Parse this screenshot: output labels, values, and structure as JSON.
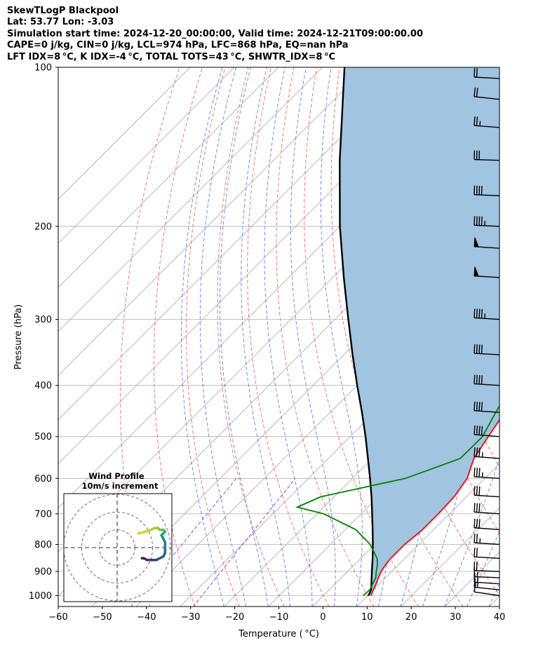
{
  "header": {
    "line1": "SkewTLogP Blackpool",
    "line2": "Lat: 53.77   Lon: -3.03",
    "line3": "Simulation start time: 2024-12-20_00:00:00, Valid time: 2024-12-21T09:00:00.00",
    "line4": "CAPE=0 j/kg, CIN=0 j/kg, LCL=974 hPa, LFC=868 hPa, EQ=nan hPa",
    "line5": "LFT IDX=8 °C, K IDX=-4 °C, TOTAL TOTS=43 °C, SHWTR_IDX=8 °C"
  },
  "chart_data": {
    "type": "line",
    "subtype": "skew-t log-p",
    "xlabel": "Temperature ( °C)",
    "ylabel": "Pressure (hPa)",
    "xlim": [
      -60,
      40
    ],
    "ylim": [
      1050,
      100
    ],
    "x_ticks": [
      -60,
      -50,
      -40,
      -30,
      -20,
      -10,
      0,
      10,
      20,
      30,
      40
    ],
    "x_tick_labels": [
      "−60",
      "−50",
      "−40",
      "−30",
      "−20",
      "−10",
      "0",
      "10",
      "20",
      "30",
      "40"
    ],
    "y_ticks": [
      1000,
      900,
      800,
      700,
      600,
      500,
      400,
      300,
      200,
      100
    ],
    "y_tick_labels": [
      "1000",
      "900",
      "800",
      "700",
      "600",
      "500",
      "400",
      "300",
      "200",
      "100"
    ],
    "y_scale": "log",
    "grid": true,
    "colors": {
      "temperature": "#ff0000",
      "dewpoint": "#008000",
      "parcel": "#000000",
      "cape_fill": "#a1c4e0",
      "dry_adiabats": "#ff4444",
      "moist_adiabats": "#3355ff",
      "isotherms": "#999999",
      "mixing_ratio": "#9933cc"
    },
    "series": [
      {
        "key": "temperature",
        "points": [
          [
            1000,
            10.8
          ],
          [
            975,
            10.0
          ],
          [
            950,
            9.3
          ],
          [
            925,
            8.4
          ],
          [
            900,
            7.6
          ],
          [
            875,
            7.1
          ],
          [
            850,
            6.8
          ],
          [
            800,
            6.8
          ],
          [
            750,
            7.5
          ],
          [
            700,
            7.5
          ],
          [
            650,
            7.2
          ],
          [
            600,
            6.0
          ],
          [
            550,
            3.0
          ],
          [
            500,
            1.3
          ],
          [
            450,
            -0.5
          ],
          [
            400,
            -2.5
          ],
          [
            350,
            -5.7
          ],
          [
            300,
            -9.5
          ],
          [
            275,
            -11.9
          ],
          [
            250,
            -13.6
          ],
          [
            230,
            -13.0
          ],
          [
            210,
            -13.2
          ],
          [
            200,
            -13.5
          ],
          [
            190,
            -12.0
          ],
          [
            180,
            -9.0
          ],
          [
            170,
            -6.0
          ],
          [
            160,
            -3.5
          ],
          [
            150,
            -1.5
          ],
          [
            140,
            0.8
          ],
          [
            130,
            1.8
          ],
          [
            120,
            2.8
          ],
          [
            110,
            3.3
          ],
          [
            100,
            3.5
          ]
        ]
      },
      {
        "key": "dewpoint",
        "points": [
          [
            1000,
            9.0
          ],
          [
            975,
            9.2
          ],
          [
            950,
            8.5
          ],
          [
            925,
            7.8
          ],
          [
            900,
            6.5
          ],
          [
            875,
            5.3
          ],
          [
            850,
            3.7
          ],
          [
            800,
            -1.0
          ],
          [
            750,
            -7.6
          ],
          [
            700,
            -18.5
          ],
          [
            680,
            -26.0
          ],
          [
            650,
            -23.0
          ],
          [
            600,
            -8.0
          ],
          [
            550,
            -0.1
          ],
          [
            500,
            0.0
          ],
          [
            450,
            -2.5
          ],
          [
            400,
            -5.0
          ],
          [
            350,
            -8.7
          ],
          [
            300,
            -13.5
          ],
          [
            275,
            -15.6
          ],
          [
            250,
            -17.6
          ],
          [
            230,
            -17.0
          ],
          [
            210,
            -16.2
          ],
          [
            200,
            -15.5
          ],
          [
            180,
            -13.0
          ],
          [
            170,
            -14.5
          ],
          [
            160,
            -18.0
          ],
          [
            150,
            -14.5
          ],
          [
            140,
            -11.5
          ],
          [
            130,
            -8.5
          ],
          [
            120,
            -5.5
          ],
          [
            110,
            -2.5
          ],
          [
            100,
            0.0
          ]
        ]
      },
      {
        "key": "parcel",
        "points": [
          [
            1000,
            10.2
          ],
          [
            975,
            9.5
          ],
          [
            950,
            8.2
          ],
          [
            900,
            5.5
          ],
          [
            850,
            2.7
          ],
          [
            800,
            -0.4
          ],
          [
            750,
            -3.8
          ],
          [
            700,
            -7.5
          ],
          [
            650,
            -11.5
          ],
          [
            600,
            -16.0
          ],
          [
            550,
            -21.0
          ],
          [
            500,
            -26.5
          ],
          [
            450,
            -32.8
          ],
          [
            400,
            -40.0
          ],
          [
            350,
            -48.0
          ],
          [
            300,
            -57.0
          ],
          [
            250,
            -67.5
          ],
          [
            200,
            -80.0
          ],
          [
            150,
            -95.0
          ],
          [
            100,
            -115.0
          ]
        ]
      }
    ],
    "wind_barbs": [
      {
        "p": 1000,
        "u": 10,
        "v": 5
      },
      {
        "p": 975,
        "u": 12,
        "v": 4
      },
      {
        "p": 950,
        "u": 14,
        "v": 3
      },
      {
        "p": 925,
        "u": 16,
        "v": 2
      },
      {
        "p": 900,
        "u": 18,
        "v": 2
      },
      {
        "p": 850,
        "u": 22,
        "v": 4
      },
      {
        "p": 800,
        "u": 25,
        "v": 5
      },
      {
        "p": 750,
        "u": 27,
        "v": 6
      },
      {
        "p": 700,
        "u": 29,
        "v": 6
      },
      {
        "p": 650,
        "u": 31,
        "v": 6
      },
      {
        "p": 600,
        "u": 33,
        "v": 7
      },
      {
        "p": 550,
        "u": 35,
        "v": 8
      },
      {
        "p": 500,
        "u": 37,
        "v": 9
      },
      {
        "p": 450,
        "u": 38,
        "v": 8
      },
      {
        "p": 400,
        "u": 38,
        "v": 7
      },
      {
        "p": 350,
        "u": 40,
        "v": 7
      },
      {
        "p": 300,
        "u": 42,
        "v": 8
      },
      {
        "p": 250,
        "u": 50,
        "v": 10
      },
      {
        "p": 220,
        "u": 51,
        "v": 10
      },
      {
        "p": 200,
        "u": 45,
        "v": 6
      },
      {
        "p": 175,
        "u": 40,
        "v": 5
      },
      {
        "p": 150,
        "u": 30,
        "v": 3
      },
      {
        "p": 130,
        "u": 25,
        "v": 6
      },
      {
        "p": 115,
        "u": 20,
        "v": 7
      },
      {
        "p": 105,
        "u": 18,
        "v": 3
      }
    ],
    "hodograph": {
      "title": "Wind Profile",
      "subtitle": "10m/s increment",
      "rings": [
        10,
        20,
        30
      ],
      "points": [
        [
          12,
          -8
        ],
        [
          16,
          -9
        ],
        [
          19,
          -10
        ],
        [
          21,
          -11
        ],
        [
          23,
          -11
        ],
        [
          24,
          -10
        ],
        [
          26,
          -10
        ],
        [
          27,
          -9
        ],
        [
          26,
          -8
        ],
        [
          25,
          -7
        ],
        [
          26,
          -5
        ],
        [
          27,
          -3
        ],
        [
          27,
          1
        ],
        [
          27,
          3
        ],
        [
          26,
          5
        ],
        [
          24,
          6
        ],
        [
          22,
          7
        ],
        [
          19,
          7
        ],
        [
          17,
          7
        ],
        [
          15,
          6
        ],
        [
          14,
          6
        ]
      ]
    }
  }
}
